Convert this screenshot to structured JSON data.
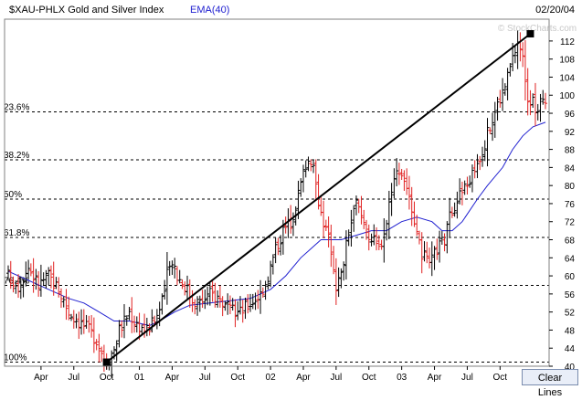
{
  "header": {
    "title": "$XAU-PHLX Gold and Silver Index",
    "indicator": "EMA(40)",
    "date": "02/20/04",
    "watermark": "© StockCharts.com"
  },
  "controls": {
    "clear_lines_label": "Clear Lines"
  },
  "colors": {
    "up_bar": "#000000",
    "down_bar": "#e02020",
    "ema": "#2020d0",
    "trendline": "#000000",
    "frame": "#808080"
  },
  "chart_data": {
    "type": "ohlc",
    "title": "$XAU-PHLX Gold and Silver Index",
    "ylim": [
      40,
      114
    ],
    "y_ticks": [
      40,
      44,
      48,
      52,
      56,
      60,
      64,
      68,
      72,
      76,
      80,
      84,
      88,
      92,
      96,
      100,
      104,
      108,
      112
    ],
    "x_tick_labels": [
      "Apr",
      "Jul",
      "Oct",
      "01",
      "Apr",
      "Jul",
      "Oct",
      "02",
      "Apr",
      "Jul",
      "Oct",
      "03",
      "Apr",
      "Jul",
      "Oct"
    ],
    "x_tick_weeks": [
      13,
      26,
      39,
      52,
      65,
      78,
      91,
      104,
      117,
      130,
      143,
      156,
      169,
      182,
      195
    ],
    "total_weeks": 214,
    "weekly_close": [
      [
        0,
        60
      ],
      [
        4,
        58
      ],
      [
        8,
        62
      ],
      [
        12,
        58
      ],
      [
        16,
        60
      ],
      [
        20,
        57
      ],
      [
        24,
        52
      ],
      [
        28,
        50
      ],
      [
        32,
        48
      ],
      [
        35,
        46
      ],
      [
        38,
        42
      ],
      [
        40,
        42
      ],
      [
        42,
        44
      ],
      [
        44,
        48
      ],
      [
        46,
        50
      ],
      [
        48,
        52
      ],
      [
        50,
        50
      ],
      [
        52,
        49
      ],
      [
        55,
        48
      ],
      [
        58,
        50
      ],
      [
        61,
        54
      ],
      [
        63,
        60
      ],
      [
        65,
        64
      ],
      [
        67,
        60
      ],
      [
        70,
        58
      ],
      [
        73,
        55
      ],
      [
        76,
        54
      ],
      [
        80,
        56
      ],
      [
        84,
        55
      ],
      [
        88,
        52
      ],
      [
        92,
        52
      ],
      [
        96,
        54
      ],
      [
        100,
        56
      ],
      [
        103,
        60
      ],
      [
        106,
        66
      ],
      [
        109,
        70
      ],
      [
        112,
        72
      ],
      [
        115,
        78
      ],
      [
        118,
        85
      ],
      [
        120,
        86
      ],
      [
        122,
        80
      ],
      [
        124,
        74
      ],
      [
        126,
        70
      ],
      [
        128,
        66
      ],
      [
        130,
        58
      ],
      [
        132,
        60
      ],
      [
        135,
        70
      ],
      [
        138,
        76
      ],
      [
        141,
        72
      ],
      [
        144,
        68
      ],
      [
        147,
        66
      ],
      [
        150,
        72
      ],
      [
        152,
        80
      ],
      [
        155,
        84
      ],
      [
        158,
        80
      ],
      [
        161,
        70
      ],
      [
        164,
        65
      ],
      [
        167,
        62
      ],
      [
        170,
        66
      ],
      [
        173,
        68
      ],
      [
        176,
        75
      ],
      [
        179,
        78
      ],
      [
        182,
        80
      ],
      [
        185,
        84
      ],
      [
        188,
        88
      ],
      [
        191,
        93
      ],
      [
        194,
        98
      ],
      [
        197,
        102
      ],
      [
        200,
        108
      ],
      [
        202,
        112
      ],
      [
        204,
        108
      ],
      [
        206,
        100
      ],
      [
        208,
        98
      ],
      [
        210,
        96
      ],
      [
        212,
        100
      ],
      [
        213,
        99
      ]
    ],
    "ema40": [
      [
        0,
        61
      ],
      [
        8,
        59
      ],
      [
        16,
        57
      ],
      [
        24,
        55
      ],
      [
        30,
        54
      ],
      [
        36,
        52
      ],
      [
        42,
        50
      ],
      [
        48,
        50
      ],
      [
        52,
        49.5
      ],
      [
        56,
        49
      ],
      [
        60,
        50
      ],
      [
        66,
        52
      ],
      [
        72,
        53.5
      ],
      [
        80,
        54
      ],
      [
        88,
        54.5
      ],
      [
        96,
        55
      ],
      [
        104,
        57
      ],
      [
        110,
        60
      ],
      [
        116,
        64
      ],
      [
        120,
        66
      ],
      [
        124,
        68
      ],
      [
        128,
        68
      ],
      [
        132,
        68
      ],
      [
        138,
        69
      ],
      [
        144,
        70
      ],
      [
        150,
        70
      ],
      [
        156,
        72
      ],
      [
        162,
        73
      ],
      [
        168,
        72
      ],
      [
        172,
        70
      ],
      [
        176,
        70
      ],
      [
        180,
        72
      ],
      [
        186,
        77
      ],
      [
        190,
        80
      ],
      [
        196,
        84
      ],
      [
        200,
        88
      ],
      [
        204,
        91
      ],
      [
        208,
        93
      ],
      [
        213,
        94
      ]
    ],
    "fib_levels": [
      {
        "label": "23.6%",
        "value": 96.3
      },
      {
        "label": "38.2%",
        "value": 85.7
      },
      {
        "label": "50%",
        "value": 77.0
      },
      {
        "label": "61.8%",
        "value": 68.5
      },
      {
        "label": "76.4%",
        "value": 57.9
      },
      {
        "label": "100%",
        "value": 40.9
      }
    ],
    "trendline": {
      "start": [
        39,
        40.9
      ],
      "end": [
        207,
        113.6
      ]
    },
    "grid": false
  }
}
